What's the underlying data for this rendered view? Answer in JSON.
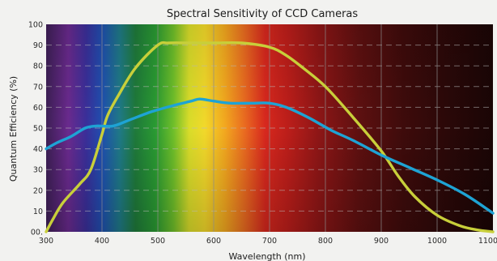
{
  "chart_data": {
    "type": "line",
    "title": "Spectral Sensitivity of CCD Cameras",
    "xlabel": "Wavelength (nm)",
    "ylabel": "Quantum Efficiency (%)",
    "xlim": [
      300,
      1100
    ],
    "ylim": [
      0,
      100
    ],
    "x_ticks": [
      "300",
      "400",
      "500",
      "600",
      "700",
      "800",
      "900",
      "1000",
      "1100"
    ],
    "y_ticks": [
      "00.",
      "10",
      "20",
      "30",
      "40",
      "50",
      "60",
      "70",
      "80",
      "90",
      "100"
    ],
    "grid": true,
    "series": [
      {
        "color": "#c8cf3a",
        "x": [
          300,
          312,
          330,
          360,
          380,
          400,
          410,
          430,
          460,
          500,
          520,
          560,
          600,
          650,
          700,
          730,
          760,
          800,
          850,
          900,
          930,
          960,
          1000,
          1040,
          1070,
          1100
        ],
        "y": [
          0,
          6,
          14,
          23,
          30,
          47,
          56,
          66,
          79,
          90,
          91,
          91,
          91,
          91,
          89,
          85,
          79,
          70,
          55,
          39,
          27,
          17,
          8,
          3,
          1,
          0
        ]
      },
      {
        "color": "#1ea3d4",
        "x": [
          300,
          320,
          345,
          370,
          390,
          420,
          450,
          490,
          530,
          560,
          575,
          600,
          630,
          670,
          700,
          730,
          770,
          810,
          850,
          900,
          950,
          1000,
          1050,
          1100
        ],
        "y": [
          40,
          43,
          46,
          50,
          51,
          51,
          54,
          58,
          61,
          63,
          64,
          63,
          62,
          62,
          62,
          60,
          55,
          49,
          44,
          37,
          31,
          25,
          18,
          9
        ]
      }
    ]
  }
}
